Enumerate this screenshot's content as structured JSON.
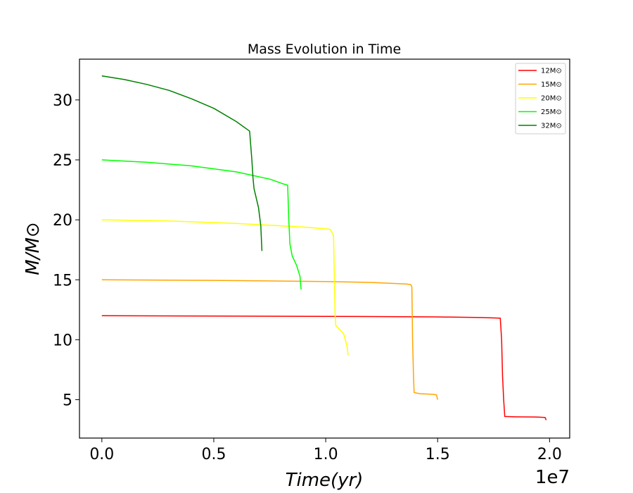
{
  "chart_data": {
    "type": "line",
    "title": "Mass Evolution in Time",
    "xlabel": "Time(yr)",
    "ylabel": "M/M⊙",
    "x_offset_label": "1e7",
    "xlim": [
      -0.1,
      2.09
    ],
    "ylim": [
      1.8,
      33.4
    ],
    "x_ticks": [
      0.0,
      0.5,
      1.0,
      1.5,
      2.0
    ],
    "x_tick_labels": [
      "0.0",
      "0.5",
      "1.0",
      "1.5",
      "2.0"
    ],
    "y_ticks": [
      5,
      10,
      15,
      20,
      25,
      30
    ],
    "y_tick_labels": [
      "5",
      "10",
      "15",
      "20",
      "25",
      "30"
    ],
    "grid": false,
    "legend_position": "top-right",
    "series": [
      {
        "name": "12M⊙",
        "color": "#ff0000",
        "x": [
          0.0,
          0.5,
          1.0,
          1.5,
          1.7,
          1.78,
          1.786,
          1.79,
          1.795,
          1.8,
          1.85,
          1.95,
          1.98,
          1.985
        ],
        "y": [
          12.0,
          11.98,
          11.95,
          11.9,
          11.85,
          11.8,
          10.0,
          7.0,
          5.0,
          3.6,
          3.57,
          3.55,
          3.52,
          3.3
        ]
      },
      {
        "name": "15M⊙",
        "color": "#ffa500",
        "x": [
          0.0,
          0.5,
          1.0,
          1.2,
          1.36,
          1.38,
          1.385,
          1.388,
          1.392,
          1.395,
          1.42,
          1.48,
          1.495,
          1.5
        ],
        "y": [
          15.0,
          14.95,
          14.85,
          14.78,
          14.65,
          14.6,
          14.4,
          10.0,
          7.0,
          5.6,
          5.5,
          5.45,
          5.4,
          5.0
        ]
      },
      {
        "name": "20M⊙",
        "color": "#ffff00",
        "x": [
          0.0,
          0.3,
          0.6,
          0.9,
          1.0,
          1.02,
          1.035,
          1.04,
          1.042,
          1.045,
          1.06,
          1.08,
          1.095,
          1.1
        ],
        "y": [
          20.0,
          19.9,
          19.7,
          19.4,
          19.25,
          19.2,
          18.7,
          14.0,
          12.0,
          11.2,
          10.9,
          10.5,
          9.5,
          8.7
        ]
      },
      {
        "name": "25M⊙",
        "color": "#00ff00",
        "x": [
          0.0,
          0.2,
          0.4,
          0.6,
          0.75,
          0.81,
          0.83,
          0.835,
          0.84,
          0.85,
          0.87,
          0.885,
          0.89
        ],
        "y": [
          25.0,
          24.8,
          24.5,
          24.0,
          23.4,
          23.0,
          22.9,
          20.0,
          18.0,
          17.0,
          16.2,
          15.3,
          14.2
        ]
      },
      {
        "name": "32M⊙",
        "color": "#008000",
        "x": [
          0.0,
          0.1,
          0.2,
          0.3,
          0.4,
          0.5,
          0.6,
          0.66,
          0.67,
          0.675,
          0.68,
          0.7,
          0.71,
          0.715
        ],
        "y": [
          32.0,
          31.7,
          31.3,
          30.8,
          30.1,
          29.3,
          28.2,
          27.4,
          25.0,
          23.5,
          22.6,
          21.0,
          19.5,
          17.4
        ]
      }
    ]
  }
}
